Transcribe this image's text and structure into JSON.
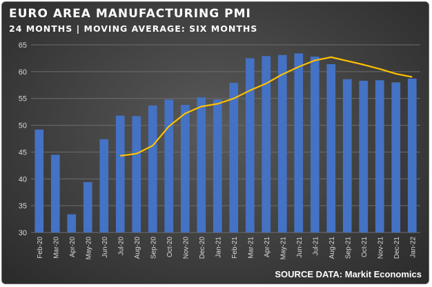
{
  "header": {
    "title": "EURO AREA MANUFACTURING PMI",
    "subtitle": "24 MONTHS | MOVING AVERAGE: SIX MONTHS"
  },
  "footer": {
    "source": "SOURCE DATA: Markit Economics"
  },
  "colors": {
    "bar": "#4472c4",
    "moving_average": "#ffc000",
    "grid": "#6e6e6e",
    "text": "#ffffff"
  },
  "chart_data": {
    "type": "bar",
    "title": "EURO AREA MANUFACTURING PMI",
    "subtitle": "24 MONTHS | MOVING AVERAGE: SIX MONTHS",
    "categories": [
      "Feb-20",
      "Mar-20",
      "Apr-20",
      "May-20",
      "Jun-20",
      "Jul-20",
      "Aug-20",
      "Sep-20",
      "Oct-20",
      "Nov-20",
      "Dec-20",
      "Jan-21",
      "Feb-21",
      "Mar-21",
      "Apr-21",
      "May-21",
      "Jun-21",
      "Jul-21",
      "Aug-21",
      "Sep-21",
      "Oct-21",
      "Nov-21",
      "Dec-21",
      "Jan-22"
    ],
    "series": [
      {
        "type": "bar",
        "values": [
          49.2,
          44.5,
          33.4,
          39.4,
          47.4,
          51.8,
          51.7,
          53.7,
          54.8,
          53.8,
          55.2,
          54.8,
          57.9,
          62.5,
          62.9,
          63.1,
          63.4,
          62.8,
          61.4,
          58.6,
          58.3,
          58.4,
          58.0,
          58.7
        ]
      },
      {
        "type": "line",
        "values": [
          null,
          null,
          null,
          null,
          null,
          44.3,
          44.7,
          46.2,
          49.8,
          52.2,
          53.5,
          54.0,
          55.0,
          56.5,
          57.8,
          59.5,
          60.9,
          62.1,
          62.7,
          62.0,
          61.3,
          60.5,
          59.6,
          59.0
        ]
      }
    ],
    "xlabel": "",
    "ylabel": "",
    "ylim": [
      30,
      65
    ],
    "yticks": [
      30,
      35,
      40,
      45,
      50,
      55,
      60,
      65
    ],
    "grid": true,
    "legend": "none"
  }
}
